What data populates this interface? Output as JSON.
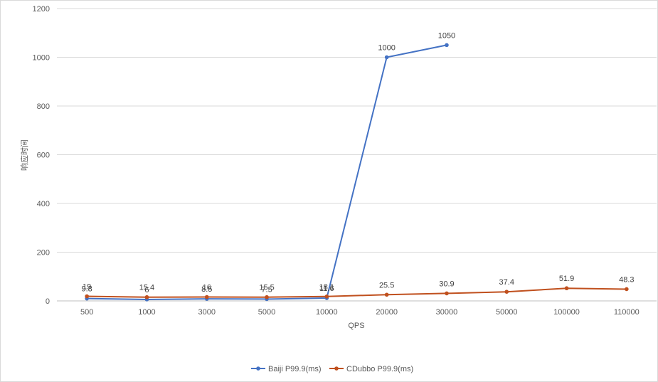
{
  "chart_data": {
    "type": "line",
    "title": "",
    "xlabel": "QPS",
    "ylabel": "响应时间",
    "categories": [
      "500",
      "1000",
      "3000",
      "5000",
      "10000",
      "20000",
      "30000",
      "50000",
      "100000",
      "110000"
    ],
    "ylim": [
      0,
      1200
    ],
    "yticks": [
      0,
      200,
      400,
      600,
      800,
      1000,
      1200
    ],
    "grid": true,
    "legend": "bottom",
    "series": [
      {
        "name": "Baiji P99.9(ms)",
        "color": "#4472c4",
        "values": [
          9.8,
          6,
          8.5,
          7.5,
          11.6,
          1000,
          1050,
          null,
          null,
          null
        ],
        "labels": [
          "9.8",
          "6",
          "8.5",
          "7.5",
          "11.6",
          "1000",
          "1050",
          null,
          null,
          null
        ]
      },
      {
        "name": "CDubbo  P99.9(ms)",
        "color": "#c0501e",
        "values": [
          19,
          15.4,
          16,
          15.5,
          18.1,
          25.5,
          30.9,
          37.4,
          51.9,
          48.3
        ],
        "labels": [
          "19",
          "15.4",
          "16",
          "15.5",
          "18.1",
          "25.5",
          "30.9",
          "37.4",
          "51.9",
          "48.3"
        ]
      }
    ]
  }
}
